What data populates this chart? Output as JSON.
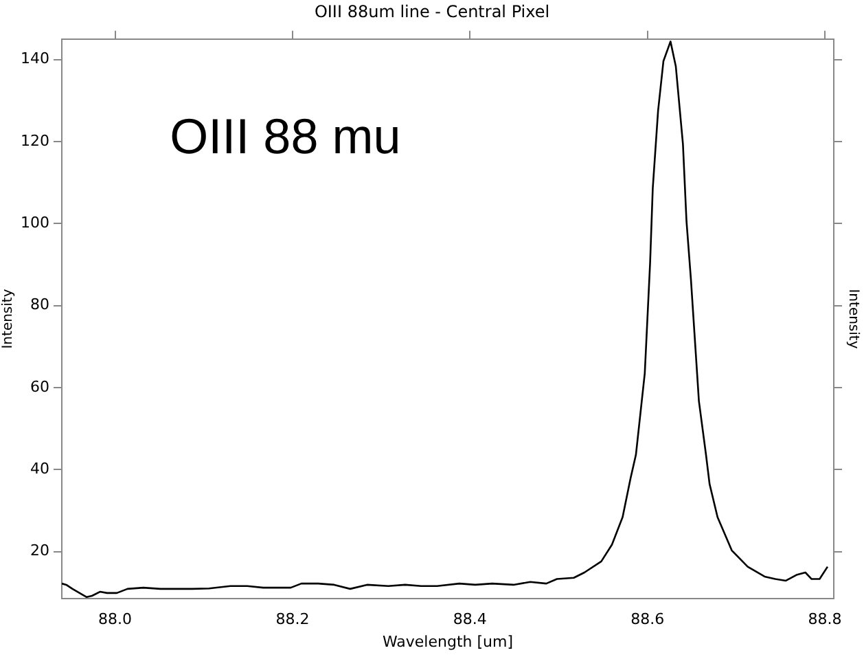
{
  "chart_data": {
    "type": "line",
    "title": "OIII 88um line - Central Pixel",
    "xlabel": "Wavelength [um]",
    "ylabel": "Intensity",
    "y2label": "Intensity",
    "annotations": [
      "OIII 88 mu"
    ],
    "x": [
      87.94,
      87.945,
      87.952,
      87.96,
      87.968,
      87.974,
      87.983,
      87.991,
      88.002,
      88.014,
      88.032,
      88.051,
      88.069,
      88.087,
      88.106,
      88.13,
      88.149,
      88.167,
      88.186,
      88.198,
      88.21,
      88.229,
      88.247,
      88.265,
      88.284,
      88.308,
      88.327,
      88.345,
      88.363,
      88.388,
      88.406,
      88.425,
      88.449,
      88.468,
      88.486,
      88.498,
      88.517,
      88.529,
      88.548,
      88.56,
      88.572,
      88.581,
      88.587,
      88.597,
      88.603,
      88.606,
      88.612,
      88.618,
      88.626,
      88.632,
      88.64,
      88.644,
      88.649,
      88.658,
      88.666,
      88.67,
      88.679,
      88.695,
      88.713,
      88.732,
      88.744,
      88.756,
      88.768,
      88.778,
      88.785,
      88.794,
      88.803
    ],
    "series": [
      {
        "color": "#000000",
        "values": [
          12.2,
          11.9,
          10.9,
          9.9,
          8.9,
          9.2,
          10.2,
          9.9,
          9.9,
          10.9,
          11.2,
          10.9,
          10.9,
          10.9,
          11,
          11.6,
          11.6,
          11.2,
          11.2,
          11.2,
          12.2,
          12.2,
          11.9,
          10.9,
          11.9,
          11.6,
          11.9,
          11.6,
          11.6,
          12.2,
          11.9,
          12.2,
          11.9,
          12.6,
          12.2,
          13.3,
          13.6,
          14.9,
          17.6,
          21.7,
          28.4,
          37.9,
          43.6,
          63.5,
          90.4,
          108.6,
          127.5,
          139.6,
          144.4,
          138.3,
          119.4,
          100.6,
          86.4,
          56.7,
          43.6,
          36.5,
          28.4,
          20.3,
          16.3,
          13.9,
          13.3,
          12.9,
          14.3,
          14.9,
          13.3,
          13.3,
          16.3
        ]
      }
    ],
    "xlim": [
      87.94,
      88.81
    ],
    "ylim": [
      8.5,
      145
    ],
    "xticks": [
      {
        "value": 88,
        "label": "88.0"
      },
      88.2,
      88.4,
      88.6,
      88.8
    ],
    "yticks": [
      20,
      40,
      60,
      80,
      100,
      120,
      140
    ],
    "grid": false,
    "legend": false,
    "marker": "none",
    "line_style": "solid"
  }
}
